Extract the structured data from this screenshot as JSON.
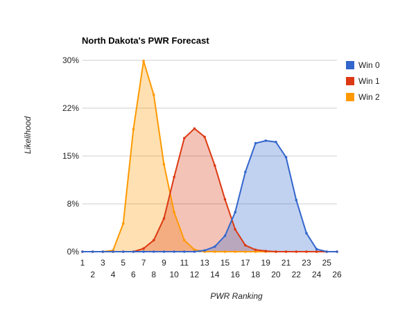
{
  "chart_data": {
    "type": "area",
    "title": "North Dakota's PWR Forecast",
    "xlabel": "PWR Ranking",
    "ylabel": "Likelihood",
    "x": [
      1,
      2,
      3,
      4,
      5,
      6,
      7,
      8,
      9,
      10,
      11,
      12,
      13,
      14,
      15,
      16,
      17,
      18,
      19,
      20,
      21,
      22,
      23,
      24,
      25,
      26
    ],
    "xlim": [
      1,
      26
    ],
    "ylim": [
      0,
      30
    ],
    "y_ticks": [
      "0%",
      "8%",
      "15%",
      "22%",
      "30%"
    ],
    "grid": true,
    "legend_position": "right",
    "series": [
      {
        "name": "Win 0",
        "color": "#3366cc",
        "fill": "#c3d1f0",
        "values": [
          0,
          0,
          0,
          0,
          0,
          0,
          0,
          0,
          0,
          0,
          0,
          0,
          0.2,
          0.8,
          2.5,
          6.2,
          12.5,
          17.0,
          17.4,
          17.2,
          14.8,
          8.1,
          2.9,
          0.4,
          0,
          0
        ]
      },
      {
        "name": "Win 1",
        "color": "#dc3912",
        "fill": "#f5c4b8",
        "values": [
          0,
          0,
          0,
          0,
          0,
          0,
          0.5,
          1.8,
          5.2,
          11.7,
          17.8,
          19.3,
          18.0,
          13.5,
          8.2,
          3.5,
          1.0,
          0.3,
          0.1,
          0,
          0,
          0,
          0,
          0,
          0,
          0
        ]
      },
      {
        "name": "Win 2",
        "color": "#ff9900",
        "fill": "#ffdfb0",
        "values": [
          0,
          0,
          0,
          0.2,
          4.4,
          19.2,
          29.9,
          24.6,
          13.7,
          6.2,
          1.8,
          0.3,
          0,
          0,
          0,
          0,
          0,
          0,
          0,
          0,
          0,
          0,
          0,
          0,
          0,
          0
        ]
      }
    ]
  }
}
